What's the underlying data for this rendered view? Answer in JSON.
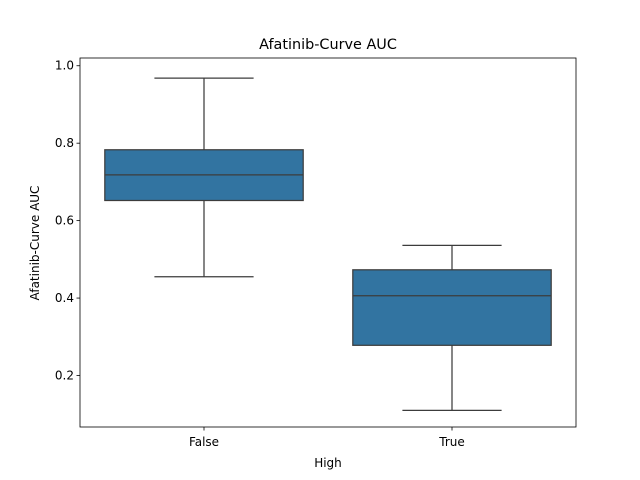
{
  "chart_data": {
    "type": "box",
    "title": "Afatinib-Curve AUC",
    "xlabel": "High",
    "ylabel": "Afatinib-Curve AUC",
    "ylim": [
      0.067,
      1.02
    ],
    "yticks": [
      0.2,
      0.4,
      0.6,
      0.8,
      1.0
    ],
    "ytick_labels": [
      "0.2",
      "0.4",
      "0.6",
      "0.8",
      "1.0"
    ],
    "categories": [
      "False",
      "True"
    ],
    "boxes": [
      {
        "category": "False",
        "whisker_low": 0.455,
        "q1": 0.652,
        "median": 0.718,
        "q3": 0.783,
        "whisker_high": 0.968
      },
      {
        "category": "True",
        "whisker_low": 0.11,
        "q1": 0.278,
        "median": 0.406,
        "q3": 0.473,
        "whisker_high": 0.536
      }
    ],
    "box_color": "#3274a1",
    "edge_color": "#3c3c3c",
    "grid": false,
    "legend": "none"
  }
}
